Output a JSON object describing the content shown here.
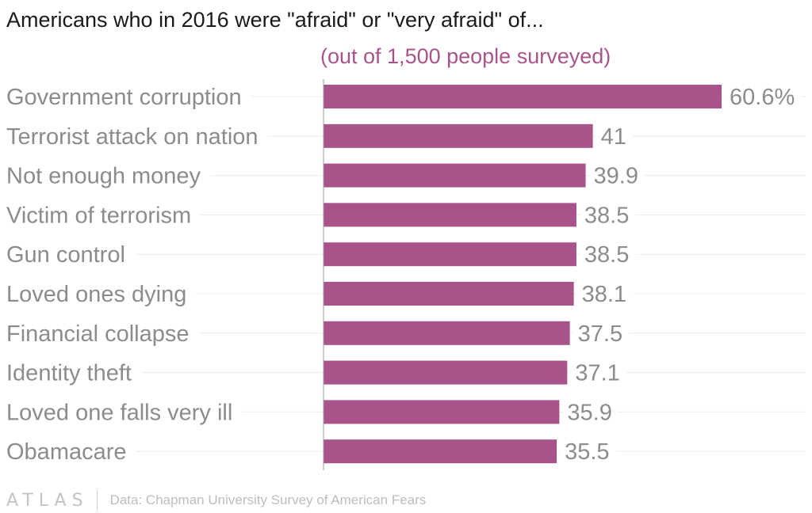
{
  "title": "Americans who in 2016 were \"afraid\" or \"very afraid\" of...",
  "subtitle": "(out of 1,500 people surveyed)",
  "footer": {
    "logo": "ATLAS",
    "source": "Data: Chapman University Survey of American Fears"
  },
  "colors": {
    "bar": "#a8548a",
    "subtitle": "#a8548a",
    "category_label": "#8c8c8c",
    "value_label": "#8c8c8c",
    "gridline": "#ececec",
    "axis": "#9a9a9a"
  },
  "chart_data": {
    "type": "bar",
    "orientation": "horizontal",
    "categories": [
      "Government corruption",
      "Terrorist attack on nation",
      "Not enough money",
      "Victim of terrorism",
      "Gun control",
      "Loved ones dying",
      "Financial collapse",
      "Identity theft",
      "Loved one falls very ill",
      "Obamacare"
    ],
    "values": [
      60.6,
      41,
      39.9,
      38.5,
      38.5,
      38.1,
      37.5,
      37.1,
      35.9,
      35.5
    ],
    "value_labels": [
      "60.6%",
      "41",
      "39.9",
      "38.5",
      "38.5",
      "38.1",
      "37.5",
      "37.1",
      "35.9",
      "35.5"
    ],
    "xlim": [
      0,
      60.6
    ],
    "grid": true,
    "legend": "none"
  }
}
